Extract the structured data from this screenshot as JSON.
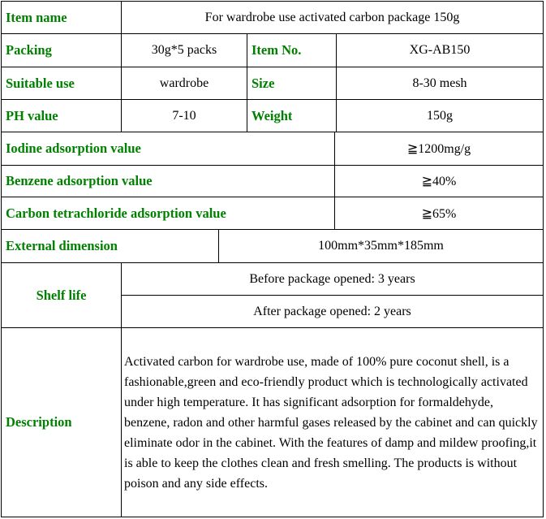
{
  "table": {
    "item_name_label": "Item name",
    "item_name": "For wardrobe use activated carbon package 150g",
    "packing_label": "Packing",
    "packing": "30g*5 packs",
    "item_no_label": "Item No.",
    "item_no": "XG-AB150",
    "suitable_use_label": "Suitable use",
    "suitable_use": "wardrobe",
    "size_label": "Size",
    "size": "8-30 mesh",
    "ph_label": "PH value",
    "ph": "7-10",
    "weight_label": "Weight",
    "weight": "150g",
    "iodine_label": "Iodine adsorption value",
    "iodine": "≧1200mg/g",
    "benzene_label": "Benzene adsorption value",
    "benzene": "≧40%",
    "ccl4_label": "Carbon tetrachloride adsorption value",
    "ccl4": "≧65%",
    "dimension_label": "External dimension",
    "dimension": "100mm*35mm*185mm",
    "shelf_life_label": "Shelf life",
    "shelf_before": "Before package opened: 3 years",
    "shelf_after": "After package opened: 2 years",
    "description_label": "Description",
    "description": "Activated carbon for wardrobe use, made of 100% pure coconut shell, is a fashionable,green and eco-friendly product which is technologically activated under high temperature.  It has significant adsorption for formaldehyde, benzene, radon and other harmful gases released by the cabinet and can quickly eliminate odor in the cabinet.  With the features of damp and mildew proofing,it is able to keep the clothes clean and fresh smelling.  The products is without poison and any side effects."
  }
}
